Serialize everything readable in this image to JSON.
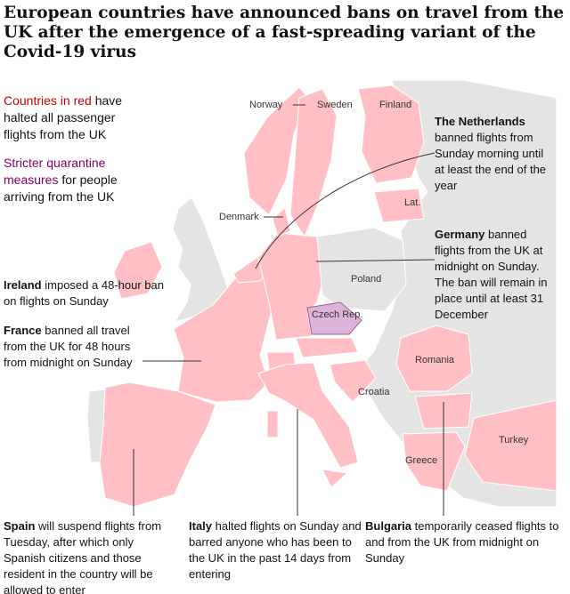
{
  "title": "European countries have announced bans on travel from the UK after the emergence of a fast-spreading variant of the Covid-19 virus",
  "legend": [
    {
      "highlight": "Countries in red",
      "text": "have halted all passenger flights from the UK"
    },
    {
      "highlight": "Stricter quarantine measures",
      "text": "for people arriving from the UK"
    }
  ],
  "country_labels": [
    "Norway",
    "Sweden",
    "Finland",
    "Denmark",
    "Lat.",
    "Poland",
    "Czech Rep.",
    "Croatia",
    "Romania",
    "Turkey",
    "Greece"
  ],
  "annotations": [
    {
      "name": "The Netherlands",
      "text": "banned flights from Sunday morning until at least the end of the year"
    },
    {
      "name": "Germany",
      "text": "banned flights from the UK at midnight on Sunday. The ban will remain in place until at least 31 December"
    },
    {
      "name": "Ireland",
      "text": "imposed a 48-hour ban on flights on Sunday"
    },
    {
      "name": "France",
      "text": "banned all travel from the UK for 48 hours from midnight on Sunday"
    },
    {
      "name": "Spain",
      "text": "will suspend flights from Tuesday, after which only Spanish citizens and those resident in the country will be allowed to enter"
    },
    {
      "name": "Italy",
      "text": "halted flights on Sunday and barred anyone who has been to the UK in the past 14 days from entering"
    },
    {
      "name": "Bulgaria",
      "text": "temporarily ceased flights to and from the UK from midnight on Sunday"
    }
  ]
}
